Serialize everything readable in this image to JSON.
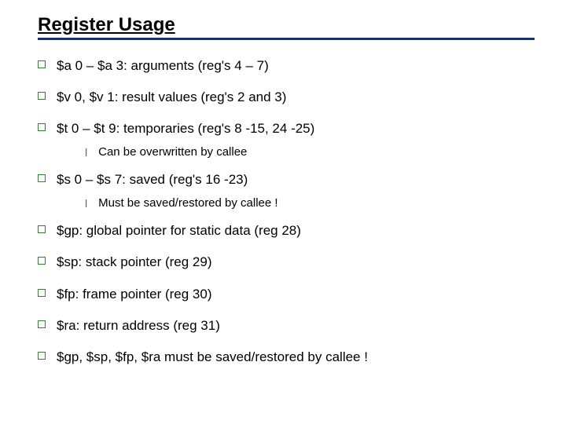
{
  "title": "Register Usage",
  "colors": {
    "title_underline": "#1a2f6b",
    "bullet_border": "#3a7a3a",
    "sub_bullet": "#3a7a3a",
    "text": "#000000",
    "background": "#ffffff"
  },
  "typography": {
    "title_fontsize": 24,
    "item_fontsize": 17,
    "sub_fontsize": 15,
    "font_family": "Arial"
  },
  "items": [
    {
      "text": "$a 0 – $a 3: arguments (reg's 4 – 7)"
    },
    {
      "text": "$v 0, $v 1: result values (reg's 2 and 3)"
    },
    {
      "text": "$t 0 – $t 9: temporaries  (reg's 8 -15, 24 -25)",
      "sub": "Can be overwritten by callee"
    },
    {
      "text": "$s 0 – $s 7: saved  (reg's 16 -23)",
      "sub": "Must be saved/restored by callee !"
    },
    {
      "text": "$gp: global pointer for static data (reg 28)"
    },
    {
      "text": "$sp: stack pointer (reg 29)"
    },
    {
      "text": "$fp: frame pointer (reg 30)"
    },
    {
      "text": "$ra: return address (reg 31)"
    },
    {
      "text": "$gp, $sp, $fp, $ra must be saved/restored by callee !"
    }
  ]
}
